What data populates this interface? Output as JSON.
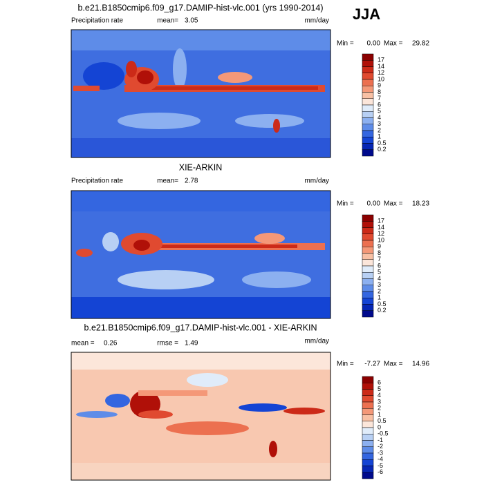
{
  "season": "JJA",
  "panels": [
    {
      "title": "b.e21.B1850cmip6.f09_g17.DAMIP-hist-vlc.001 (yrs 1990-2014)",
      "variable": "Precipitation rate",
      "mean_label": "mean=",
      "mean": 3.05,
      "units": "mm/day",
      "min_label": "Min =",
      "min": {
        "value": 0,
        "label": "0.00"
      },
      "max_label": "Max =",
      "max": 29.82,
      "colorbar": {
        "levels": [
          17,
          14,
          12,
          10,
          9,
          8,
          7,
          6,
          5,
          4,
          3,
          2,
          1,
          0.5,
          0.2
        ],
        "colors": [
          "#8b0000",
          "#b01008",
          "#cc2a18",
          "#e04a30",
          "#ec7050",
          "#f49878",
          "#f8c0a4",
          "#fce6da",
          "#e0ecfa",
          "#b8d0f4",
          "#8cb0f0",
          "#5e8ce8",
          "#3466e0",
          "#1444d4",
          "#0626b4",
          "#000a8c"
        ]
      }
    },
    {
      "title": "XIE-ARKIN",
      "variable": "Precipitation rate",
      "mean_label": "mean=",
      "mean": 2.78,
      "units": "mm/day",
      "min_label": "Min =",
      "min": {
        "value": 0,
        "label": "0.00"
      },
      "max_label": "Max =",
      "max": 18.23,
      "colorbar": {
        "levels": [
          17,
          14,
          12,
          10,
          9,
          8,
          7,
          6,
          5,
          4,
          3,
          2,
          1,
          0.5,
          0.2
        ],
        "colors": [
          "#8b0000",
          "#b01008",
          "#cc2a18",
          "#e04a30",
          "#ec7050",
          "#f49878",
          "#f8c0a4",
          "#fce6da",
          "#e0ecfa",
          "#b8d0f4",
          "#8cb0f0",
          "#5e8ce8",
          "#3466e0",
          "#1444d4",
          "#0626b4",
          "#000a8c"
        ]
      }
    },
    {
      "title": "b.e21.B1850cmip6.f09_g17.DAMIP-hist-vlc.001 - XIE-ARKIN",
      "mean_label": "mean =",
      "mean": 0.26,
      "rmse_label": "rmse =",
      "rmse": 1.49,
      "units": "mm/day",
      "min_label": "Min =",
      "min": -7.27,
      "max_label": "Max =",
      "max": 14.96,
      "colorbar": {
        "levels": [
          6,
          5,
          4,
          3,
          2,
          1,
          0.5,
          0,
          -0.5,
          -1,
          -2,
          -3,
          -4,
          -5,
          -6
        ],
        "colors": [
          "#8b0000",
          "#b01008",
          "#cc2a18",
          "#e04a30",
          "#ec7050",
          "#f49878",
          "#f8c0a4",
          "#fce6da",
          "#e0ecfa",
          "#b8d0f4",
          "#8cb0f0",
          "#5e8ce8",
          "#3466e0",
          "#1444d4",
          "#0626b4",
          "#000a8c"
        ]
      }
    }
  ]
}
